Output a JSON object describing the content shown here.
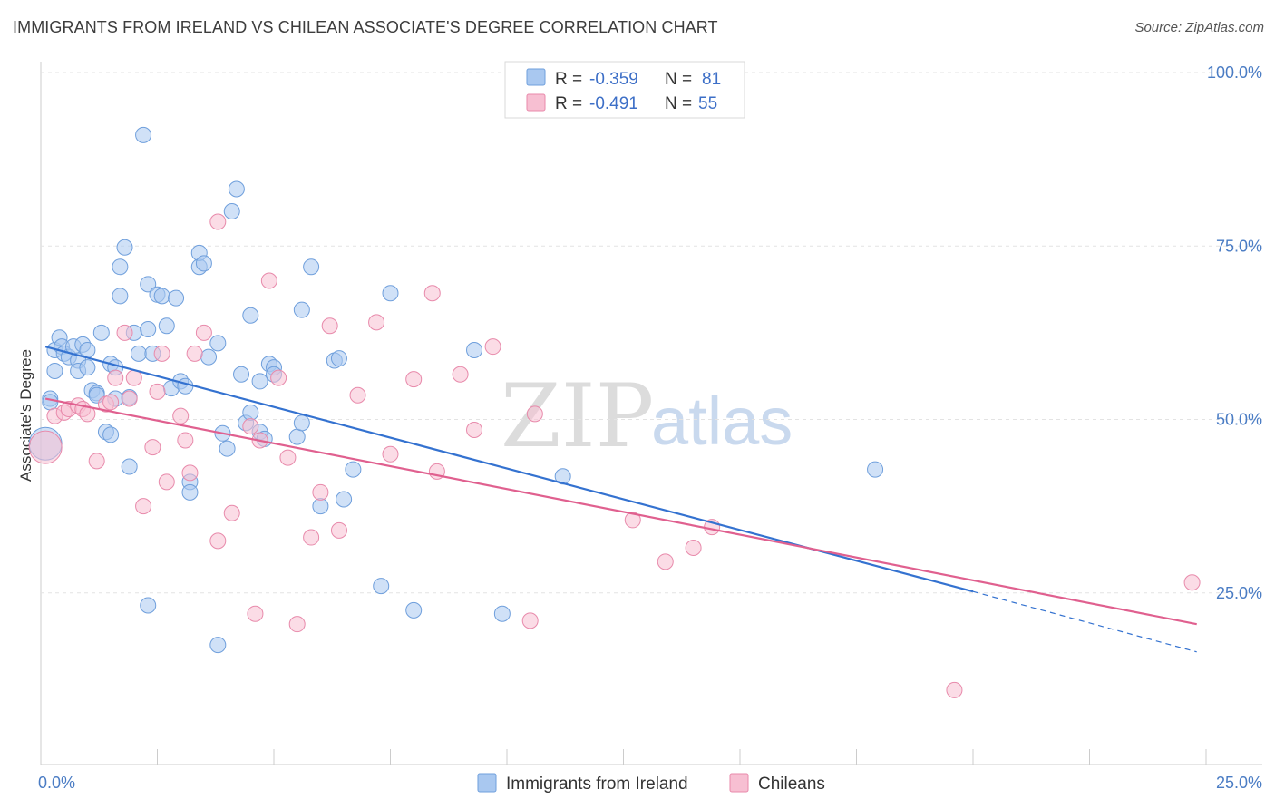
{
  "title": "IMMIGRANTS FROM IRELAND VS CHILEAN ASSOCIATE'S DEGREE CORRELATION CHART",
  "source": "Source: ZipAtlas.com",
  "watermark": {
    "zip": "ZIP",
    "atlas": "atlas"
  },
  "legend_top": [
    {
      "r_label": "R =",
      "r_value": "-0.359",
      "n_label": "N =",
      "n_value": "81",
      "color": "#a9c8f0",
      "stroke": "#6f9fdc"
    },
    {
      "r_label": "R =",
      "r_value": "-0.491",
      "n_label": "N =",
      "n_value": "55",
      "color": "#f7bfd2",
      "stroke": "#e88aab"
    }
  ],
  "legend_bottom": [
    {
      "label": "Immigrants from Ireland",
      "color": "#a9c8f0",
      "stroke": "#6f9fdc"
    },
    {
      "label": "Chileans",
      "color": "#f7bfd2",
      "stroke": "#e88aab"
    }
  ],
  "chart_data": {
    "type": "scatter",
    "title": "IMMIGRANTS FROM IRELAND VS CHILEAN ASSOCIATE'S DEGREE CORRELATION CHART",
    "xlabel": "",
    "ylabel": "Associate's Degree",
    "xlim": [
      0,
      25
    ],
    "ylim": [
      0,
      100
    ],
    "x_tick_labels": [
      "0.0%",
      "25.0%"
    ],
    "y_tick_labels": [
      "100.0%",
      "75.0%",
      "50.0%",
      "25.0%"
    ],
    "y_tick_values": [
      100,
      75,
      50,
      25
    ],
    "grid": "horizontal dashed",
    "legend_placement": "top-center",
    "series": [
      {
        "name": "Immigrants from Ireland",
        "color": "#a9c8f0",
        "stroke": "#6f9fdc",
        "line_color": "#3472d0",
        "trend": {
          "x0": 0.1,
          "y0": 60.5,
          "x1": 20.0,
          "y1": 25.2,
          "dash_to_x": 24.8,
          "dash_to_y": 16.5
        },
        "points": [
          [
            0.1,
            46.5
          ],
          [
            0.2,
            53
          ],
          [
            0.2,
            52.5
          ],
          [
            0.3,
            57
          ],
          [
            0.3,
            60
          ],
          [
            0.4,
            61.8
          ],
          [
            0.45,
            60.5
          ],
          [
            0.5,
            59.5
          ],
          [
            0.6,
            59
          ],
          [
            0.7,
            60.5
          ],
          [
            0.8,
            58.5
          ],
          [
            0.8,
            57
          ],
          [
            0.9,
            60.8
          ],
          [
            1.0,
            57.5
          ],
          [
            1.0,
            60
          ],
          [
            1.1,
            54.2
          ],
          [
            1.2,
            53.8
          ],
          [
            1.2,
            53.5
          ],
          [
            1.3,
            62.5
          ],
          [
            1.4,
            48.2
          ],
          [
            1.5,
            47.8
          ],
          [
            1.5,
            58
          ],
          [
            1.6,
            57.5
          ],
          [
            1.6,
            53
          ],
          [
            1.7,
            72
          ],
          [
            1.7,
            67.8
          ],
          [
            1.8,
            74.8
          ],
          [
            1.9,
            43.2
          ],
          [
            1.9,
            53.2
          ],
          [
            2.0,
            62.5
          ],
          [
            2.1,
            59.5
          ],
          [
            2.2,
            91
          ],
          [
            2.3,
            63
          ],
          [
            2.3,
            69.5
          ],
          [
            2.4,
            59.5
          ],
          [
            2.5,
            68
          ],
          [
            2.6,
            67.8
          ],
          [
            2.7,
            63.5
          ],
          [
            2.8,
            54.5
          ],
          [
            2.9,
            67.5
          ],
          [
            3.0,
            55.5
          ],
          [
            3.1,
            54.8
          ],
          [
            3.2,
            41
          ],
          [
            3.2,
            39.5
          ],
          [
            3.4,
            72
          ],
          [
            3.4,
            74
          ],
          [
            3.5,
            72.5
          ],
          [
            3.6,
            59
          ],
          [
            3.8,
            61
          ],
          [
            3.9,
            48
          ],
          [
            4.0,
            45.8
          ],
          [
            4.1,
            80
          ],
          [
            4.2,
            83.2
          ],
          [
            4.3,
            56.5
          ],
          [
            4.4,
            49.5
          ],
          [
            4.5,
            51
          ],
          [
            4.5,
            65
          ],
          [
            4.7,
            48.2
          ],
          [
            4.7,
            55.5
          ],
          [
            4.8,
            47.2
          ],
          [
            4.9,
            58
          ],
          [
            5.0,
            57.5
          ],
          [
            5.0,
            56.5
          ],
          [
            5.5,
            47.5
          ],
          [
            5.6,
            49.5
          ],
          [
            5.6,
            65.8
          ],
          [
            5.8,
            72
          ],
          [
            6.0,
            37.5
          ],
          [
            6.3,
            58.5
          ],
          [
            6.4,
            58.8
          ],
          [
            6.5,
            38.5
          ],
          [
            6.7,
            42.8
          ],
          [
            7.3,
            26
          ],
          [
            7.5,
            68.2
          ],
          [
            8.0,
            22.5
          ],
          [
            9.3,
            60
          ],
          [
            9.9,
            22
          ],
          [
            11.2,
            41.8
          ],
          [
            17.9,
            42.8
          ],
          [
            2.3,
            23.2
          ],
          [
            3.8,
            17.5
          ]
        ]
      },
      {
        "name": "Chileans",
        "color": "#f7bfd2",
        "stroke": "#e88aab",
        "line_color": "#e0608f",
        "trend": {
          "x0": 0.1,
          "y0": 53,
          "x1": 24.8,
          "y1": 20.5
        },
        "points": [
          [
            0.1,
            46
          ],
          [
            0.3,
            50.5
          ],
          [
            0.5,
            51
          ],
          [
            0.6,
            51.5
          ],
          [
            0.8,
            52
          ],
          [
            0.9,
            51.5
          ],
          [
            1.0,
            50.8
          ],
          [
            1.2,
            44
          ],
          [
            1.4,
            52.2
          ],
          [
            1.5,
            52.5
          ],
          [
            1.6,
            56
          ],
          [
            1.8,
            62.5
          ],
          [
            1.9,
            53
          ],
          [
            2.0,
            56
          ],
          [
            2.2,
            37.5
          ],
          [
            2.4,
            46
          ],
          [
            2.5,
            54
          ],
          [
            2.6,
            59.5
          ],
          [
            2.7,
            41
          ],
          [
            3.0,
            50.5
          ],
          [
            3.1,
            47
          ],
          [
            3.2,
            42.3
          ],
          [
            3.3,
            59.5
          ],
          [
            3.5,
            62.5
          ],
          [
            3.8,
            32.5
          ],
          [
            3.8,
            78.5
          ],
          [
            4.1,
            36.5
          ],
          [
            4.5,
            49
          ],
          [
            4.6,
            22
          ],
          [
            4.7,
            47
          ],
          [
            4.9,
            70
          ],
          [
            5.1,
            56
          ],
          [
            5.3,
            44.5
          ],
          [
            5.5,
            20.5
          ],
          [
            5.8,
            33
          ],
          [
            6.0,
            39.5
          ],
          [
            6.2,
            63.5
          ],
          [
            6.4,
            34
          ],
          [
            6.8,
            53.5
          ],
          [
            7.2,
            64
          ],
          [
            7.5,
            45
          ],
          [
            8.0,
            55.8
          ],
          [
            8.4,
            68.2
          ],
          [
            8.5,
            42.5
          ],
          [
            9.0,
            56.5
          ],
          [
            9.3,
            48.5
          ],
          [
            9.7,
            60.5
          ],
          [
            10.5,
            21
          ],
          [
            10.6,
            50.8
          ],
          [
            12.7,
            35.5
          ],
          [
            13.4,
            29.5
          ],
          [
            14.0,
            31.5
          ],
          [
            14.4,
            34.5
          ],
          [
            19.6,
            11
          ],
          [
            24.7,
            26.5
          ]
        ]
      }
    ]
  }
}
